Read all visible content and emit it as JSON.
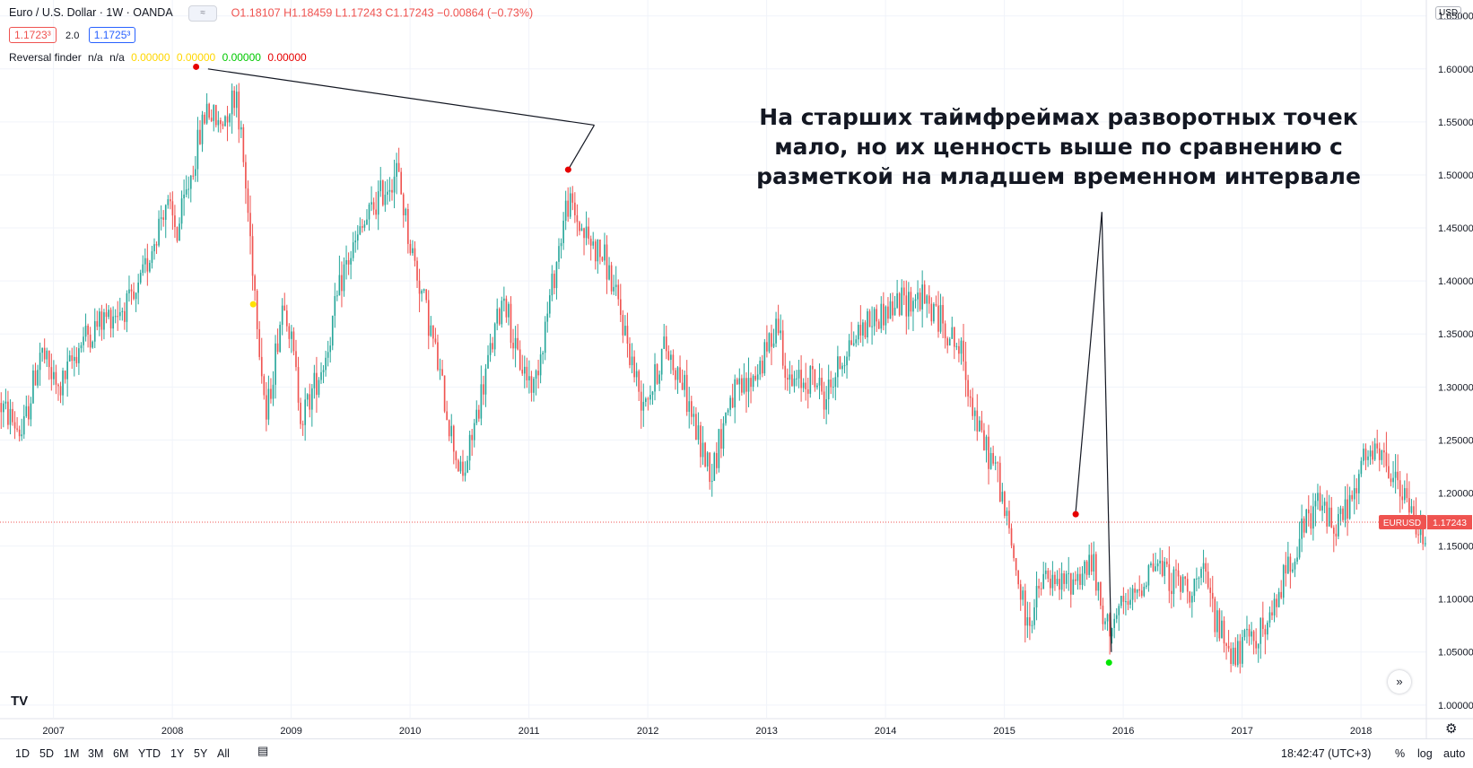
{
  "header": {
    "symbol": "Euro / U.S. Dollar · 1W · OANDA",
    "open": "O1.18107",
    "high": "H1.18459",
    "low": "L1.17243",
    "close": "C1.17243",
    "change": "−0.00864 (−0.73%)",
    "sell_price": "1.1723³",
    "spread": "2.0",
    "buy_price": "1.1725³",
    "currency_button": "USD"
  },
  "indicator": {
    "name": "Reversal finder",
    "na1": "n/a",
    "na2": "n/a",
    "v1": "0.00000",
    "v2": "0.00000",
    "v3": "0.00000",
    "v4": "0.00000",
    "colors": [
      "#ffe100",
      "#ffe100",
      "#00e600",
      "#e60000"
    ]
  },
  "annotation": "На старших таймфреймах разворотных точек мало, но их ценность выше по сравнению с разметкой на младшем временном интервале",
  "last_price_label": "1.17243",
  "symbol_label": "EURUSD",
  "bottom_bar": {
    "ranges": [
      "1D",
      "5D",
      "1M",
      "3M",
      "6M",
      "YTD",
      "1Y",
      "5Y",
      "All"
    ],
    "time": "18:42:47 (UTC+3)",
    "percent": "%",
    "log": "log",
    "auto": "auto"
  },
  "chart_data": {
    "type": "candlestick",
    "title": "Euro / U.S. Dollar · 1W · OANDA",
    "x_ticks": [
      "2007",
      "2008",
      "2009",
      "2010",
      "2011",
      "2012",
      "2013",
      "2014",
      "2015",
      "2016",
      "2017",
      "2018"
    ],
    "y_ticks": [
      "1.00000",
      "1.05000",
      "1.10000",
      "1.15000",
      "1.20000",
      "1.25000",
      "1.30000",
      "1.35000",
      "1.40000",
      "1.45000",
      "1.50000",
      "1.55000",
      "1.60000",
      "1.65000"
    ],
    "ylim": [
      0.988,
      1.665
    ],
    "xlim": [
      2006.55,
      2018.55
    ],
    "up_color": "#26a69a",
    "down_color": "#ef5350",
    "price_path": [
      [
        2006.55,
        1.285
      ],
      [
        2006.75,
        1.255
      ],
      [
        2006.9,
        1.335
      ],
      [
        2007.05,
        1.295
      ],
      [
        2007.25,
        1.345
      ],
      [
        2007.5,
        1.37
      ],
      [
        2007.7,
        1.38
      ],
      [
        2007.95,
        1.475
      ],
      [
        2008.05,
        1.445
      ],
      [
        2008.3,
        1.565
      ],
      [
        2008.4,
        1.545
      ],
      [
        2008.55,
        1.58
      ],
      [
        2008.65,
        1.46
      ],
      [
        2008.8,
        1.27
      ],
      [
        2008.95,
        1.39
      ],
      [
        2009.1,
        1.27
      ],
      [
        2009.3,
        1.33
      ],
      [
        2009.45,
        1.41
      ],
      [
        2009.7,
        1.47
      ],
      [
        2009.9,
        1.505
      ],
      [
        2010.0,
        1.44
      ],
      [
        2010.2,
        1.345
      ],
      [
        2010.35,
        1.26
      ],
      [
        2010.45,
        1.21
      ],
      [
        2010.6,
        1.29
      ],
      [
        2010.8,
        1.39
      ],
      [
        2010.9,
        1.33
      ],
      [
        2011.05,
        1.3
      ],
      [
        2011.15,
        1.36
      ],
      [
        2011.33,
        1.475
      ],
      [
        2011.5,
        1.44
      ],
      [
        2011.65,
        1.42
      ],
      [
        2011.8,
        1.36
      ],
      [
        2011.95,
        1.29
      ],
      [
        2012.05,
        1.3
      ],
      [
        2012.15,
        1.34
      ],
      [
        2012.3,
        1.305
      ],
      [
        2012.45,
        1.245
      ],
      [
        2012.55,
        1.22
      ],
      [
        2012.7,
        1.29
      ],
      [
        2012.85,
        1.3
      ],
      [
        2013.0,
        1.33
      ],
      [
        2013.1,
        1.365
      ],
      [
        2013.2,
        1.3
      ],
      [
        2013.4,
        1.31
      ],
      [
        2013.5,
        1.29
      ],
      [
        2013.7,
        1.34
      ],
      [
        2013.85,
        1.36
      ],
      [
        2014.0,
        1.37
      ],
      [
        2014.15,
        1.38
      ],
      [
        2014.3,
        1.385
      ],
      [
        2014.5,
        1.36
      ],
      [
        2014.65,
        1.33
      ],
      [
        2014.8,
        1.255
      ],
      [
        2014.95,
        1.22
      ],
      [
        2015.05,
        1.16
      ],
      [
        2015.2,
        1.075
      ],
      [
        2015.35,
        1.12
      ],
      [
        2015.45,
        1.11
      ],
      [
        2015.6,
        1.12
      ],
      [
        2015.75,
        1.135
      ],
      [
        2015.85,
        1.07
      ],
      [
        2015.95,
        1.085
      ],
      [
        2016.1,
        1.1
      ],
      [
        2016.25,
        1.135
      ],
      [
        2016.4,
        1.12
      ],
      [
        2016.55,
        1.11
      ],
      [
        2016.7,
        1.12
      ],
      [
        2016.8,
        1.075
      ],
      [
        2016.95,
        1.045
      ],
      [
        2017.1,
        1.065
      ],
      [
        2017.25,
        1.075
      ],
      [
        2017.35,
        1.12
      ],
      [
        2017.5,
        1.16
      ],
      [
        2017.65,
        1.19
      ],
      [
        2017.8,
        1.17
      ],
      [
        2017.95,
        1.195
      ],
      [
        2018.05,
        1.235
      ],
      [
        2018.2,
        1.23
      ],
      [
        2018.35,
        1.2
      ],
      [
        2018.5,
        1.165
      ]
    ],
    "last_price": 1.17243,
    "reversal_points": [
      {
        "x": 2008.2,
        "y": 1.602,
        "color": "#e60000"
      },
      {
        "x": 2008.68,
        "y": 1.378,
        "color": "#ffe100"
      },
      {
        "x": 2011.33,
        "y": 1.505,
        "color": "#e60000"
      },
      {
        "x": 2015.6,
        "y": 1.18,
        "color": "#e60000"
      },
      {
        "x": 2015.88,
        "y": 1.04,
        "color": "#00e600"
      }
    ],
    "annotation_lines": [
      {
        "from": [
          2008.3,
          1.6
        ],
        "to": [
          2011.55,
          1.547
        ]
      },
      {
        "from": [
          2011.33,
          1.505
        ],
        "to": [
          2011.55,
          1.547
        ]
      },
      {
        "from": [
          2015.6,
          1.182
        ],
        "to": [
          2015.82,
          1.465
        ]
      },
      {
        "from": [
          2015.9,
          1.05
        ],
        "to": [
          2015.82,
          1.465
        ]
      }
    ]
  }
}
